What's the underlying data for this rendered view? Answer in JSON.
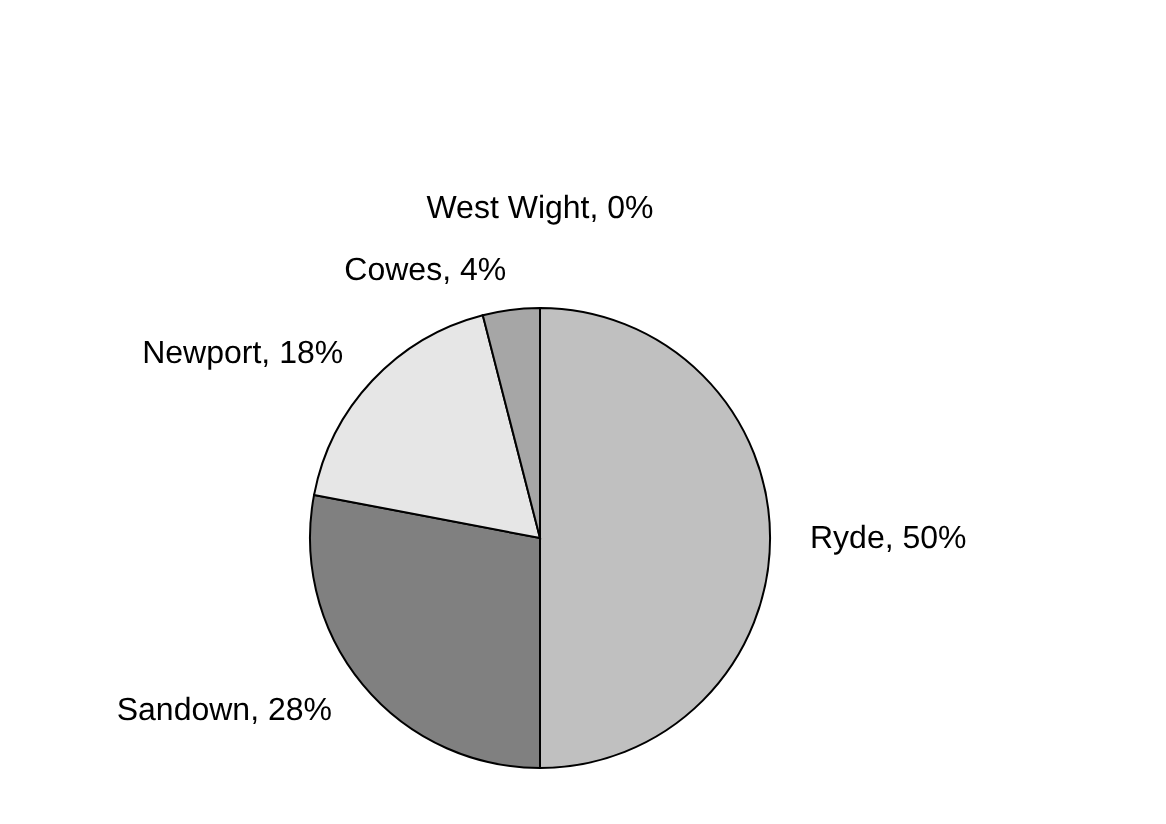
{
  "chart_data": {
    "type": "pie",
    "categories": [
      "Ryde",
      "Sandown",
      "Newport",
      "Cowes",
      "West Wight"
    ],
    "values": [
      50,
      28,
      18,
      4,
      0
    ],
    "value_labels": [
      ", 50%",
      ", 28%",
      ", 18%",
      ", 4%",
      ", 0%"
    ],
    "colors": [
      "#c0c0c0",
      "#808080",
      "#e6e6e6",
      "#a6a6a6",
      "#000000"
    ]
  }
}
